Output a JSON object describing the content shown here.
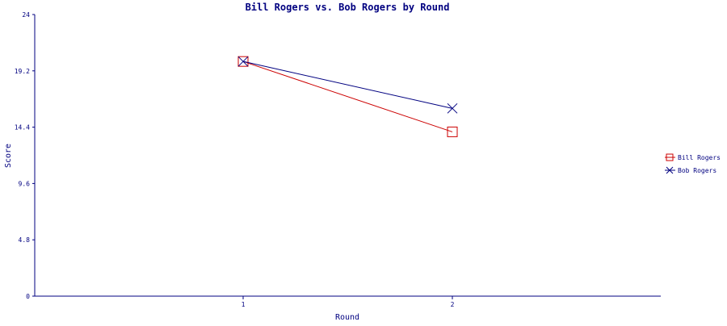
{
  "chart_data": {
    "type": "line",
    "title": "Bill Rogers vs. Bob Rogers by Round",
    "xlabel": "Round",
    "ylabel": "Score",
    "categories": [
      "1",
      "2"
    ],
    "ylim": [
      0,
      24
    ],
    "yticks": [
      "0",
      "4.8",
      "9.6",
      "14.4",
      "19.2",
      "24"
    ],
    "grid": false,
    "legend_position": "right",
    "series": [
      {
        "name": "Bill Rogers",
        "values": [
          20,
          14
        ],
        "color": "#cc0000",
        "marker": "square"
      },
      {
        "name": "Bob Rogers",
        "values": [
          20,
          16
        ],
        "color": "#000080",
        "marker": "x"
      }
    ]
  },
  "colors": {
    "text": "#000080",
    "axis": "#000080"
  }
}
